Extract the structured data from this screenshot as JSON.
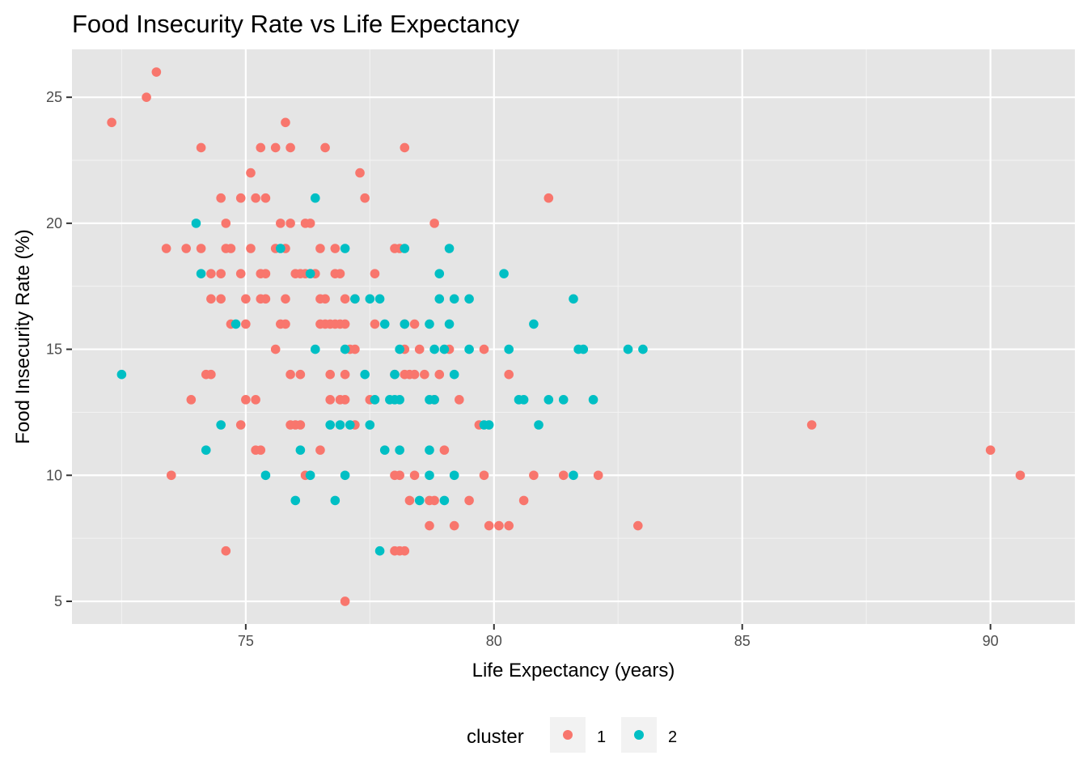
{
  "chart_data": {
    "type": "scatter",
    "title": "Food Insecurity Rate vs Life Expectancy",
    "xlabel": "Life Expectancy (years)",
    "ylabel": "Food Insecurity Rate (%)",
    "xlim": [
      71.5,
      91.7
    ],
    "ylim": [
      4.1,
      26.9
    ],
    "x_ticks": [
      75,
      80,
      85,
      90
    ],
    "y_ticks": [
      5,
      10,
      15,
      20,
      25
    ],
    "x_minor": [
      72.5,
      77.5,
      82.5,
      87.5
    ],
    "y_minor": [
      7.5,
      12.5,
      17.5,
      22.5
    ],
    "grid": true,
    "legend": {
      "title": "cluster",
      "position": "bottom",
      "entries": [
        "1",
        "2"
      ]
    },
    "colors": {
      "1": "#F8766D",
      "2": "#00BFC4"
    },
    "series": [
      {
        "name": "1",
        "points": [
          [
            72.3,
            24
          ],
          [
            73.0,
            25
          ],
          [
            73.2,
            26
          ],
          [
            73.4,
            19
          ],
          [
            73.5,
            10
          ],
          [
            73.8,
            19
          ],
          [
            73.9,
            13
          ],
          [
            74.1,
            23
          ],
          [
            74.1,
            19
          ],
          [
            74.2,
            14
          ],
          [
            74.3,
            14
          ],
          [
            74.3,
            18
          ],
          [
            74.3,
            17
          ],
          [
            74.5,
            21
          ],
          [
            74.5,
            18
          ],
          [
            74.5,
            17
          ],
          [
            74.6,
            20
          ],
          [
            74.6,
            19
          ],
          [
            74.7,
            19
          ],
          [
            74.7,
            16
          ],
          [
            74.6,
            7
          ],
          [
            74.9,
            21
          ],
          [
            74.9,
            18
          ],
          [
            74.9,
            12
          ],
          [
            75.0,
            17
          ],
          [
            75.0,
            16
          ],
          [
            75.0,
            13
          ],
          [
            75.1,
            22
          ],
          [
            75.1,
            19
          ],
          [
            75.2,
            21
          ],
          [
            75.2,
            13
          ],
          [
            75.2,
            11
          ],
          [
            75.3,
            23
          ],
          [
            75.3,
            18
          ],
          [
            75.3,
            17
          ],
          [
            75.3,
            11
          ],
          [
            75.4,
            21
          ],
          [
            75.4,
            18
          ],
          [
            75.4,
            17
          ],
          [
            75.6,
            23
          ],
          [
            75.6,
            19
          ],
          [
            75.6,
            15
          ],
          [
            75.7,
            20
          ],
          [
            75.7,
            16
          ],
          [
            75.8,
            24
          ],
          [
            75.8,
            19
          ],
          [
            75.8,
            17
          ],
          [
            75.8,
            16
          ],
          [
            75.9,
            23
          ],
          [
            75.9,
            20
          ],
          [
            75.9,
            14
          ],
          [
            75.9,
            12
          ],
          [
            76.0,
            18
          ],
          [
            76.0,
            12
          ],
          [
            76.1,
            18
          ],
          [
            76.1,
            14
          ],
          [
            76.1,
            12
          ],
          [
            76.2,
            20
          ],
          [
            76.2,
            18
          ],
          [
            76.2,
            10
          ],
          [
            76.3,
            20
          ],
          [
            76.3,
            18
          ],
          [
            76.4,
            18
          ],
          [
            76.5,
            19
          ],
          [
            76.5,
            17
          ],
          [
            76.5,
            16
          ],
          [
            76.5,
            11
          ],
          [
            76.6,
            23
          ],
          [
            76.6,
            17
          ],
          [
            76.6,
            16
          ],
          [
            76.7,
            16
          ],
          [
            76.7,
            14
          ],
          [
            76.7,
            13
          ],
          [
            76.8,
            19
          ],
          [
            76.8,
            18
          ],
          [
            76.8,
            16
          ],
          [
            76.9,
            18
          ],
          [
            76.9,
            16
          ],
          [
            76.9,
            13
          ],
          [
            77.0,
            17
          ],
          [
            77.0,
            16
          ],
          [
            77.0,
            14
          ],
          [
            77.0,
            13
          ],
          [
            77.0,
            5
          ],
          [
            77.1,
            15
          ],
          [
            77.2,
            17
          ],
          [
            77.2,
            15
          ],
          [
            77.2,
            12
          ],
          [
            77.3,
            22
          ],
          [
            77.4,
            21
          ],
          [
            77.5,
            13
          ],
          [
            77.6,
            18
          ],
          [
            77.6,
            16
          ],
          [
            78.0,
            19
          ],
          [
            78.0,
            14
          ],
          [
            78.0,
            10
          ],
          [
            78.0,
            7
          ],
          [
            78.1,
            19
          ],
          [
            78.1,
            10
          ],
          [
            78.1,
            7
          ],
          [
            78.2,
            23
          ],
          [
            78.2,
            16
          ],
          [
            78.2,
            15
          ],
          [
            78.2,
            14
          ],
          [
            78.2,
            7
          ],
          [
            78.3,
            14
          ],
          [
            78.3,
            9
          ],
          [
            78.4,
            16
          ],
          [
            78.4,
            14
          ],
          [
            78.4,
            10
          ],
          [
            78.5,
            15
          ],
          [
            78.6,
            14
          ],
          [
            78.7,
            9
          ],
          [
            78.7,
            8
          ],
          [
            78.8,
            20
          ],
          [
            78.8,
            13
          ],
          [
            78.8,
            9
          ],
          [
            78.9,
            14
          ],
          [
            79.0,
            11
          ],
          [
            79.1,
            15
          ],
          [
            79.2,
            8
          ],
          [
            79.3,
            13
          ],
          [
            79.5,
            9
          ],
          [
            79.7,
            12
          ],
          [
            79.8,
            15
          ],
          [
            79.8,
            10
          ],
          [
            79.9,
            8
          ],
          [
            80.1,
            8
          ],
          [
            80.3,
            14
          ],
          [
            80.3,
            8
          ],
          [
            80.6,
            9
          ],
          [
            80.8,
            10
          ],
          [
            81.1,
            21
          ],
          [
            81.4,
            10
          ],
          [
            82.1,
            10
          ],
          [
            82.9,
            8
          ],
          [
            86.4,
            12
          ],
          [
            90.0,
            11
          ],
          [
            90.6,
            10
          ]
        ]
      },
      {
        "name": "2",
        "points": [
          [
            72.5,
            14
          ],
          [
            74.0,
            20
          ],
          [
            74.1,
            18
          ],
          [
            74.2,
            11
          ],
          [
            74.5,
            12
          ],
          [
            74.8,
            16
          ],
          [
            75.4,
            10
          ],
          [
            75.7,
            19
          ],
          [
            76.0,
            9
          ],
          [
            76.1,
            11
          ],
          [
            76.3,
            18
          ],
          [
            76.3,
            10
          ],
          [
            76.4,
            21
          ],
          [
            76.4,
            15
          ],
          [
            76.7,
            12
          ],
          [
            76.8,
            9
          ],
          [
            76.9,
            12
          ],
          [
            77.0,
            19
          ],
          [
            77.0,
            15
          ],
          [
            77.0,
            10
          ],
          [
            77.1,
            12
          ],
          [
            77.2,
            17
          ],
          [
            77.4,
            14
          ],
          [
            77.5,
            17
          ],
          [
            77.5,
            12
          ],
          [
            77.6,
            13
          ],
          [
            77.7,
            17
          ],
          [
            77.7,
            7
          ],
          [
            77.8,
            16
          ],
          [
            77.8,
            11
          ],
          [
            77.9,
            13
          ],
          [
            78.0,
            14
          ],
          [
            78.0,
            13
          ],
          [
            78.1,
            15
          ],
          [
            78.1,
            13
          ],
          [
            78.1,
            11
          ],
          [
            78.2,
            19
          ],
          [
            78.2,
            16
          ],
          [
            78.5,
            9
          ],
          [
            78.7,
            16
          ],
          [
            78.7,
            13
          ],
          [
            78.7,
            11
          ],
          [
            78.7,
            10
          ],
          [
            78.8,
            15
          ],
          [
            78.8,
            13
          ],
          [
            78.9,
            18
          ],
          [
            78.9,
            17
          ],
          [
            79.0,
            15
          ],
          [
            79.0,
            9
          ],
          [
            79.1,
            19
          ],
          [
            79.1,
            16
          ],
          [
            79.2,
            17
          ],
          [
            79.2,
            14
          ],
          [
            79.2,
            10
          ],
          [
            79.5,
            17
          ],
          [
            79.5,
            15
          ],
          [
            79.8,
            12
          ],
          [
            79.9,
            12
          ],
          [
            80.2,
            18
          ],
          [
            80.3,
            15
          ],
          [
            80.5,
            13
          ],
          [
            80.6,
            13
          ],
          [
            80.8,
            16
          ],
          [
            80.9,
            12
          ],
          [
            81.1,
            13
          ],
          [
            81.4,
            13
          ],
          [
            81.6,
            17
          ],
          [
            81.6,
            10
          ],
          [
            81.7,
            15
          ],
          [
            81.8,
            15
          ],
          [
            82.0,
            13
          ],
          [
            82.7,
            15
          ],
          [
            83.0,
            15
          ]
        ]
      }
    ]
  }
}
